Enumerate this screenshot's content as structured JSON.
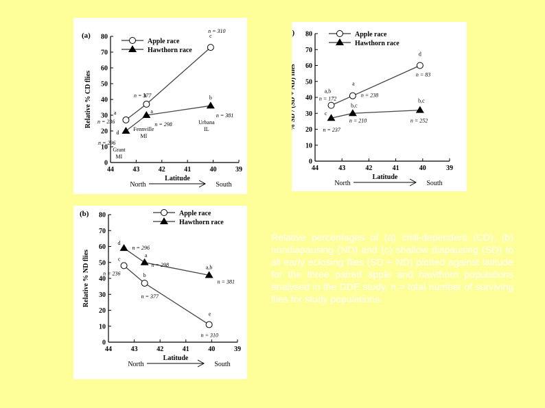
{
  "caption": "Relative percentages of (a) chill-dependent (CD), (b) nondiapausing (ND) and (c) shallow diapausing (SD) to all early eclosing flies (SD + ND) plotted against latitude for the three paired apple and hawthorn populations analysed in the DDE study. n = total number of surviving flies for study populations.",
  "chart_data": [
    {
      "id": "a",
      "panel_label": "(a)",
      "type": "line",
      "ylabel": "Relative % CD flies",
      "xlabel": "Latitude",
      "direction_left": "North",
      "direction_right": "South",
      "xlim": [
        44,
        39
      ],
      "ylim": [
        0,
        80
      ],
      "xticks": [
        44,
        43,
        42,
        41,
        40,
        39
      ],
      "yticks": [
        0,
        10,
        20,
        30,
        40,
        50,
        60,
        70,
        80
      ],
      "series": [
        {
          "name": "Apple race",
          "marker": "circle",
          "points": [
            {
              "x": 43.4,
              "y": 27,
              "letter": "a",
              "n": "n = 236"
            },
            {
              "x": 42.6,
              "y": 37,
              "letter": "b",
              "n": "n = 377"
            },
            {
              "x": 40.1,
              "y": 73,
              "letter": "c",
              "n": "n = 310"
            }
          ]
        },
        {
          "name": "Hawthorn race",
          "marker": "triangle",
          "points": [
            {
              "x": 43.4,
              "y": 20,
              "letter": "d",
              "n": "n = 296"
            },
            {
              "x": 42.6,
              "y": 30,
              "letter": "a",
              "n": "n = 298"
            },
            {
              "x": 40.1,
              "y": 36,
              "letter": "b",
              "n": "n = 381"
            }
          ]
        }
      ],
      "sites": [
        {
          "x": 43.4,
          "y": 20,
          "lines": [
            "Grant",
            "MI"
          ]
        },
        {
          "x": 42.6,
          "y": 30,
          "lines": [
            "Fennville",
            "MI"
          ]
        },
        {
          "x": 40.1,
          "y": 36,
          "lines": [
            "Urbana",
            "IL"
          ]
        }
      ]
    },
    {
      "id": "c",
      "panel_label": "(c)",
      "type": "line",
      "ylabel": "% SD / (SD + ND) flies",
      "xlabel": "Latitude",
      "direction_left": "North",
      "direction_right": "South",
      "xlim": [
        44,
        39
      ],
      "ylim": [
        0,
        80
      ],
      "xticks": [
        44,
        43,
        42,
        41,
        40,
        39
      ],
      "yticks": [
        0,
        10,
        20,
        30,
        40,
        50,
        60,
        70,
        80
      ],
      "series": [
        {
          "name": "Apple race",
          "marker": "circle",
          "points": [
            {
              "x": 43.4,
              "y": 35,
              "letter": "a,b",
              "n": "n = 172"
            },
            {
              "x": 42.6,
              "y": 41,
              "letter": "a",
              "n": "n = 238"
            },
            {
              "x": 40.1,
              "y": 60,
              "letter": "d",
              "n": "n = 83"
            }
          ]
        },
        {
          "name": "Hawthorn race",
          "marker": "triangle",
          "points": [
            {
              "x": 43.4,
              "y": 27,
              "letter": "c",
              "n": "n = 237"
            },
            {
              "x": 42.6,
              "y": 30,
              "letter": "b,c",
              "n": "n = 210"
            },
            {
              "x": 40.1,
              "y": 32,
              "letter": "b,c",
              "n": "n = 252"
            }
          ]
        }
      ],
      "sites": []
    },
    {
      "id": "b",
      "panel_label": "(b)",
      "type": "line",
      "ylabel": "Relative % ND flies",
      "xlabel": "Latitude",
      "direction_left": "North",
      "direction_right": "South",
      "xlim": [
        44,
        39
      ],
      "ylim": [
        0,
        80
      ],
      "xticks": [
        44,
        43,
        42,
        41,
        40,
        39
      ],
      "yticks": [
        0,
        10,
        20,
        30,
        40,
        50,
        60,
        70,
        80
      ],
      "series": [
        {
          "name": "Apple race",
          "marker": "circle",
          "points": [
            {
              "x": 43.4,
              "y": 48,
              "letter": "c",
              "n": "n = 236"
            },
            {
              "x": 42.6,
              "y": 37,
              "letter": "b",
              "n": "n = 377"
            },
            {
              "x": 40.1,
              "y": 11,
              "letter": "e",
              "n": "n = 310"
            }
          ]
        },
        {
          "name": "Hawthorn race",
          "marker": "triangle",
          "points": [
            {
              "x": 43.4,
              "y": 59,
              "letter": "d",
              "n": "n = 296"
            },
            {
              "x": 42.6,
              "y": 50,
              "letter": "a",
              "n": "n = 298"
            },
            {
              "x": 40.1,
              "y": 42,
              "letter": "a,b",
              "n": "n = 381"
            }
          ]
        }
      ],
      "sites": []
    }
  ]
}
